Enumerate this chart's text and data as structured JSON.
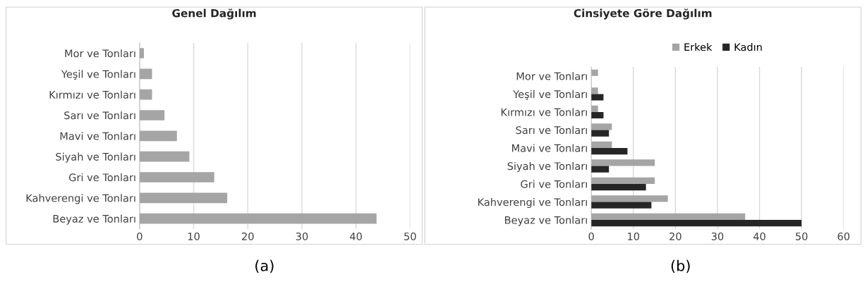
{
  "chart_data": [
    {
      "type": "bar",
      "orientation": "horizontal",
      "title": "Genel Dağılım",
      "categories": [
        "Mor ve Tonları",
        "Yeşil ve Tonları",
        "Kırmızı ve Tonları",
        "Sarı ve Tonları",
        "Mavi ve Tonları",
        "Siyah ve Tonları",
        "Gri ve Tonları",
        "Kahverengi ve Tonları",
        "Beyaz ve Tonları"
      ],
      "series": [
        {
          "color": "#a5a5a5",
          "values": [
            0.8,
            2.3,
            2.3,
            4.6,
            6.9,
            9.2,
            13.8,
            16.2,
            43.8
          ]
        }
      ],
      "xlim": [
        0,
        50
      ],
      "xticks": [
        0,
        10,
        20,
        30,
        40,
        50
      ],
      "grid": "x",
      "legend": false,
      "annotations": [
        "(a)"
      ]
    },
    {
      "type": "bar",
      "orientation": "horizontal",
      "title": "Cinsiyete Göre Dağılım",
      "categories": [
        "Mor ve Tonları",
        "Yeşil ve Tonları",
        "Kırmızı ve Tonları",
        "Sarı ve Tonları",
        "Mavi ve Tonları",
        "Siyah ve Tonları",
        "Gri ve Tonları",
        "Kahverengi ve Tonları",
        "Beyaz ve Tonları"
      ],
      "series": [
        {
          "name": "Erkek",
          "color": "#a5a5a5",
          "values": [
            1.6,
            1.6,
            1.6,
            4.9,
            4.9,
            15.1,
            15.1,
            18.2,
            36.6
          ]
        },
        {
          "name": "Kadın",
          "color": "#262626",
          "values": [
            null,
            2.9,
            2.9,
            4.2,
            8.6,
            4.2,
            13.0,
            14.3,
            50
          ]
        }
      ],
      "xlim": [
        0,
        60
      ],
      "xticks": [
        0,
        10,
        20,
        30,
        40,
        50,
        60
      ],
      "grid": "x",
      "legend": "top",
      "annotations": [
        "(b)"
      ]
    }
  ]
}
